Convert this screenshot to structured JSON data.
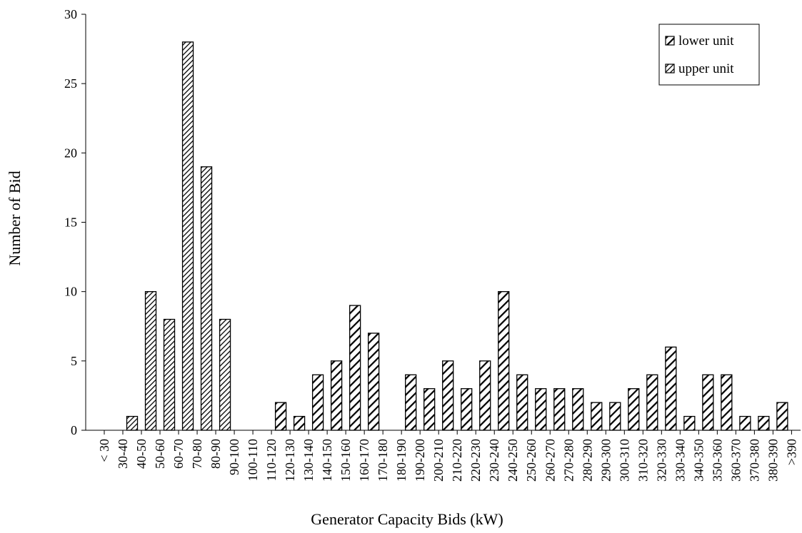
{
  "chart_data": {
    "type": "bar",
    "title": "",
    "xlabel": "Generator Capacity Bids (kW)",
    "ylabel": "Number of Bid",
    "ylim": [
      0,
      30
    ],
    "yticks": [
      0,
      5,
      10,
      15,
      20,
      25,
      30
    ],
    "grid": false,
    "legend_position": "top-right",
    "categories": [
      "< 30",
      "30-40",
      "40-50",
      "50-60",
      "60-70",
      "70-80",
      "80-90",
      "90-100",
      "100-110",
      "110-120",
      "120-130",
      "130-140",
      "140-150",
      "150-160",
      "160-170",
      "170-180",
      "180-190",
      "190-200",
      "200-210",
      "210-220",
      "220-230",
      "230-240",
      "240-250",
      "250-260",
      "260-270",
      "270-280",
      "280-290",
      "290-300",
      "300-310",
      "310-320",
      "320-330",
      "330-340",
      "340-350",
      "350-360",
      "360-370",
      "370-380",
      "380-390",
      ">390"
    ],
    "series": [
      {
        "name": "lower unit",
        "pattern": "diagonal-sparse",
        "values": [
          0,
          0,
          0,
          0,
          0,
          0,
          0,
          0,
          0,
          2,
          1,
          4,
          5,
          9,
          7,
          0,
          4,
          3,
          5,
          3,
          5,
          10,
          4,
          3,
          3,
          3,
          2,
          2,
          3,
          4,
          6,
          1,
          4,
          4,
          1,
          1,
          2,
          0
        ]
      },
      {
        "name": "upper unit",
        "pattern": "diagonal-dense",
        "values": [
          0,
          1,
          10,
          8,
          28,
          19,
          8,
          0,
          0,
          0,
          0,
          0,
          0,
          0,
          0,
          0,
          0,
          0,
          0,
          0,
          0,
          0,
          0,
          0,
          0,
          0,
          0,
          0,
          0,
          0,
          0,
          0,
          0,
          0,
          0,
          0,
          0,
          0
        ]
      }
    ]
  }
}
